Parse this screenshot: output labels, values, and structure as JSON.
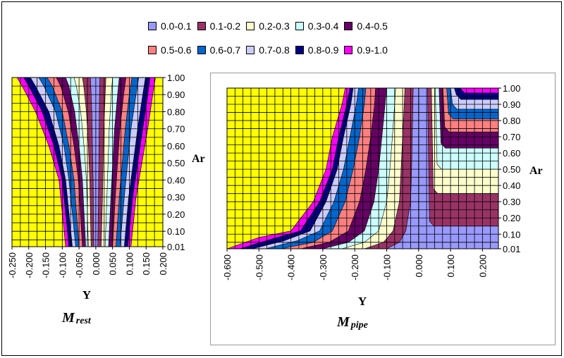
{
  "legend": {
    "items": [
      {
        "label": "0.0-0.1",
        "color": "#9999ff"
      },
      {
        "label": "0.1-0.2",
        "color": "#993366"
      },
      {
        "label": "0.2-0.3",
        "color": "#ffffcc"
      },
      {
        "label": "0.3-0.4",
        "color": "#ccffff"
      },
      {
        "label": "0.4-0.5",
        "color": "#660066"
      },
      {
        "label": "0.5-0.6",
        "color": "#ff8080"
      },
      {
        "label": "0.6-0.7",
        "color": "#0066cc"
      },
      {
        "label": "0.7-0.8",
        "color": "#ccccff"
      },
      {
        "label": "0.8-0.9",
        "color": "#000080"
      },
      {
        "label": "0.9-1.0",
        "color": "#ff00ff"
      }
    ]
  },
  "colors": {
    "background": "#ffff00",
    "grid": "#000000"
  },
  "chart_data": [
    {
      "type": "area",
      "id": "left",
      "title_main": "M",
      "title_sub": "rest",
      "xlabel": "Y",
      "ylabel": "Ar",
      "xlim": [
        -0.25,
        0.2
      ],
      "ylim": [
        0.01,
        1.0
      ],
      "x_ticks": [
        "-0.250",
        "-0.200",
        "-0.150",
        "-0.100",
        "-0.050",
        "0.000",
        "0.050",
        "0.100",
        "0.150",
        "0.200"
      ],
      "y_ticks": [
        "0.01",
        "0.10",
        "0.20",
        "0.30",
        "0.40",
        "0.50",
        "0.60",
        "0.70",
        "0.80",
        "0.90",
        "1.00"
      ],
      "bands": [
        {
          "name": "0.9-1.0",
          "color": "#ff00ff",
          "left": [
            [
              -0.09,
              0.01
            ],
            [
              -0.11,
              0.4
            ],
            [
              -0.14,
              0.6
            ],
            [
              -0.18,
              0.8
            ],
            [
              -0.22,
              0.95
            ],
            [
              -0.235,
              1.0
            ]
          ],
          "right": [
            [
              0.178,
              1.0
            ],
            [
              0.17,
              0.9
            ],
            [
              0.155,
              0.7
            ],
            [
              0.12,
              0.3
            ],
            [
              0.105,
              0.01
            ]
          ]
        },
        {
          "name": "0.8-0.9",
          "color": "#000080",
          "left": [
            [
              -0.08,
              0.01
            ],
            [
              -0.1,
              0.4
            ],
            [
              -0.125,
              0.6
            ],
            [
              -0.16,
              0.8
            ],
            [
              -0.2,
              0.95
            ],
            [
              -0.215,
              1.0
            ]
          ],
          "right": [
            [
              0.162,
              1.0
            ],
            [
              0.155,
              0.9
            ],
            [
              0.14,
              0.7
            ],
            [
              0.11,
              0.3
            ],
            [
              0.095,
              0.01
            ]
          ]
        },
        {
          "name": "0.7-0.8",
          "color": "#ccccff",
          "left": [
            [
              -0.07,
              0.01
            ],
            [
              -0.09,
              0.4
            ],
            [
              -0.11,
              0.6
            ],
            [
              -0.14,
              0.8
            ],
            [
              -0.18,
              0.95
            ],
            [
              -0.195,
              1.0
            ]
          ],
          "right": [
            [
              0.148,
              1.0
            ],
            [
              0.14,
              0.9
            ],
            [
              0.125,
              0.7
            ],
            [
              0.098,
              0.3
            ],
            [
              0.085,
              0.01
            ]
          ]
        },
        {
          "name": "0.6-0.7",
          "color": "#0066cc",
          "left": [
            [
              -0.06,
              0.01
            ],
            [
              -0.08,
              0.4
            ],
            [
              -0.095,
              0.6
            ],
            [
              -0.12,
              0.8
            ],
            [
              -0.155,
              0.95
            ],
            [
              -0.17,
              1.0
            ]
          ],
          "right": [
            [
              0.128,
              1.0
            ],
            [
              0.12,
              0.9
            ],
            [
              0.105,
              0.7
            ],
            [
              0.085,
              0.3
            ],
            [
              0.072,
              0.01
            ]
          ]
        },
        {
          "name": "0.5-0.6",
          "color": "#ff8080",
          "left": [
            [
              -0.05,
              0.01
            ],
            [
              -0.065,
              0.4
            ],
            [
              -0.08,
              0.6
            ],
            [
              -0.1,
              0.8
            ],
            [
              -0.13,
              0.95
            ],
            [
              -0.145,
              1.0
            ]
          ],
          "right": [
            [
              0.108,
              1.0
            ],
            [
              0.1,
              0.9
            ],
            [
              0.088,
              0.7
            ],
            [
              0.07,
              0.3
            ],
            [
              0.06,
              0.01
            ]
          ]
        },
        {
          "name": "0.4-0.5",
          "color": "#660066",
          "left": [
            [
              -0.04,
              0.01
            ],
            [
              -0.052,
              0.4
            ],
            [
              -0.065,
              0.6
            ],
            [
              -0.082,
              0.8
            ],
            [
              -0.105,
              0.95
            ],
            [
              -0.118,
              1.0
            ]
          ],
          "right": [
            [
              0.09,
              1.0
            ],
            [
              0.083,
              0.9
            ],
            [
              0.072,
              0.7
            ],
            [
              0.058,
              0.3
            ],
            [
              0.05,
              0.01
            ]
          ]
        },
        {
          "name": "0.3-0.4",
          "color": "#ccffff",
          "left": [
            [
              -0.03,
              0.01
            ],
            [
              -0.04,
              0.4
            ],
            [
              -0.05,
              0.6
            ],
            [
              -0.063,
              0.8
            ],
            [
              -0.08,
              0.95
            ],
            [
              -0.09,
              1.0
            ]
          ],
          "right": [
            [
              0.07,
              1.0
            ],
            [
              0.065,
              0.9
            ],
            [
              0.056,
              0.7
            ],
            [
              0.045,
              0.3
            ],
            [
              0.038,
              0.01
            ]
          ]
        },
        {
          "name": "0.2-0.3",
          "color": "#ffffcc",
          "left": [
            [
              -0.022,
              0.01
            ],
            [
              -0.028,
              0.4
            ],
            [
              -0.035,
              0.6
            ],
            [
              -0.045,
              0.8
            ],
            [
              -0.058,
              0.95
            ],
            [
              -0.065,
              1.0
            ]
          ],
          "right": [
            [
              0.05,
              1.0
            ],
            [
              0.046,
              0.9
            ],
            [
              0.04,
              0.7
            ],
            [
              0.033,
              0.3
            ],
            [
              0.028,
              0.01
            ]
          ]
        },
        {
          "name": "0.1-0.2",
          "color": "#993366",
          "left": [
            [
              -0.014,
              0.01
            ],
            [
              -0.018,
              0.4
            ],
            [
              -0.022,
              0.6
            ],
            [
              -0.028,
              0.8
            ],
            [
              -0.036,
              0.95
            ],
            [
              -0.04,
              1.0
            ]
          ],
          "right": [
            [
              0.03,
              1.0
            ],
            [
              0.028,
              0.9
            ],
            [
              0.024,
              0.7
            ],
            [
              0.02,
              0.3
            ],
            [
              0.016,
              0.01
            ]
          ]
        },
        {
          "name": "0.0-0.1",
          "color": "#9999ff",
          "left": [
            [
              -0.006,
              0.01
            ],
            [
              -0.008,
              0.4
            ],
            [
              -0.01,
              0.6
            ],
            [
              -0.012,
              0.8
            ],
            [
              -0.015,
              0.95
            ],
            [
              -0.016,
              1.0
            ]
          ],
          "right": [
            [
              0.012,
              1.0
            ],
            [
              0.011,
              0.9
            ],
            [
              0.01,
              0.7
            ],
            [
              0.008,
              0.3
            ],
            [
              0.006,
              0.01
            ]
          ]
        }
      ]
    },
    {
      "type": "area",
      "id": "right",
      "title_main": "M",
      "title_sub": "pipe",
      "xlabel": "Y",
      "ylabel": "Ar",
      "xlim": [
        -0.6,
        0.25
      ],
      "ylim": [
        0.01,
        1.0
      ],
      "x_ticks": [
        "-0.600",
        "-0.500",
        "-0.400",
        "-0.300",
        "-0.200",
        "-0.100",
        "0.000",
        "0.100",
        "0.200"
      ],
      "y_ticks": [
        "0.01",
        "0.10",
        "0.20",
        "0.30",
        "0.40",
        "0.50",
        "0.60",
        "0.70",
        "0.80",
        "0.90",
        "1.00"
      ],
      "left_bands": [
        {
          "name": "0.9-1.0",
          "color": "#ff00ff",
          "curve": [
            [
              -0.6,
              0.01
            ],
            [
              -0.5,
              0.08
            ],
            [
              -0.4,
              0.12
            ],
            [
              -0.33,
              0.3
            ],
            [
              -0.29,
              0.5
            ],
            [
              -0.27,
              0.7
            ],
            [
              -0.24,
              0.9
            ],
            [
              -0.23,
              1.0
            ]
          ]
        },
        {
          "name": "0.8-0.9",
          "color": "#000080",
          "curve": [
            [
              -0.56,
              0.01
            ],
            [
              -0.46,
              0.07
            ],
            [
              -0.37,
              0.12
            ],
            [
              -0.31,
              0.3
            ],
            [
              -0.27,
              0.5
            ],
            [
              -0.25,
              0.7
            ],
            [
              -0.225,
              0.9
            ],
            [
              -0.215,
              1.0
            ]
          ]
        },
        {
          "name": "0.7-0.8",
          "color": "#ccccff",
          "curve": [
            [
              -0.52,
              0.01
            ],
            [
              -0.42,
              0.06
            ],
            [
              -0.34,
              0.12
            ],
            [
              -0.29,
              0.3
            ],
            [
              -0.255,
              0.5
            ],
            [
              -0.235,
              0.7
            ],
            [
              -0.212,
              0.9
            ],
            [
              -0.205,
              1.0
            ]
          ]
        },
        {
          "name": "0.6-0.7",
          "color": "#0066cc",
          "curve": [
            [
              -0.48,
              0.01
            ],
            [
              -0.38,
              0.06
            ],
            [
              -0.31,
              0.12
            ],
            [
              -0.265,
              0.3
            ],
            [
              -0.235,
              0.5
            ],
            [
              -0.215,
              0.7
            ],
            [
              -0.195,
              0.9
            ],
            [
              -0.188,
              1.0
            ]
          ]
        },
        {
          "name": "0.5-0.6",
          "color": "#ff8080",
          "curve": [
            [
              -0.43,
              0.01
            ],
            [
              -0.33,
              0.05
            ],
            [
              -0.27,
              0.12
            ],
            [
              -0.23,
              0.3
            ],
            [
              -0.205,
              0.5
            ],
            [
              -0.185,
              0.7
            ],
            [
              -0.17,
              0.9
            ],
            [
              -0.165,
              1.0
            ]
          ]
        },
        {
          "name": "0.4-0.5",
          "color": "#660066",
          "curve": [
            [
              -0.37,
              0.01
            ],
            [
              -0.28,
              0.05
            ],
            [
              -0.22,
              0.12
            ],
            [
              -0.185,
              0.3
            ],
            [
              -0.165,
              0.5
            ],
            [
              -0.15,
              0.7
            ],
            [
              -0.138,
              0.9
            ],
            [
              -0.135,
              1.0
            ]
          ]
        },
        {
          "name": "0.3-0.4",
          "color": "#ccffff",
          "curve": [
            [
              -0.3,
              0.01
            ],
            [
              -0.22,
              0.05
            ],
            [
              -0.17,
              0.12
            ],
            [
              -0.14,
              0.3
            ],
            [
              -0.125,
              0.5
            ],
            [
              -0.115,
              0.7
            ],
            [
              -0.105,
              0.9
            ],
            [
              -0.1,
              1.0
            ]
          ]
        },
        {
          "name": "0.2-0.3",
          "color": "#ffffcc",
          "curve": [
            [
              -0.24,
              0.01
            ],
            [
              -0.17,
              0.05
            ],
            [
              -0.125,
              0.12
            ],
            [
              -0.1,
              0.3
            ],
            [
              -0.09,
              0.5
            ],
            [
              -0.082,
              0.7
            ],
            [
              -0.075,
              0.9
            ],
            [
              -0.072,
              1.0
            ]
          ]
        },
        {
          "name": "0.1-0.2",
          "color": "#993366",
          "curve": [
            [
              -0.17,
              0.01
            ],
            [
              -0.11,
              0.05
            ],
            [
              -0.08,
              0.12
            ],
            [
              -0.06,
              0.3
            ],
            [
              -0.055,
              0.5
            ],
            [
              -0.05,
              0.7
            ],
            [
              -0.045,
              0.9
            ],
            [
              -0.043,
              1.0
            ]
          ]
        },
        {
          "name": "0.0-0.1",
          "color": "#9999ff",
          "curve": [
            [
              -0.1,
              0.01
            ],
            [
              -0.06,
              0.05
            ],
            [
              -0.04,
              0.12
            ],
            [
              -0.025,
              0.3
            ],
            [
              -0.022,
              0.5
            ],
            [
              -0.02,
              0.7
            ],
            [
              -0.018,
              0.9
            ],
            [
              -0.017,
              1.0
            ]
          ]
        }
      ],
      "right_bands": [
        {
          "name": "0.1-0.2",
          "color": "#993366",
          "xstart": 0.028,
          "ylevel": 0.15
        },
        {
          "name": "0.2-0.3",
          "color": "#ffffcc",
          "xstart": 0.04,
          "ylevel": 0.35
        },
        {
          "name": "0.3-0.4",
          "color": "#ccffff",
          "xstart": 0.052,
          "ylevel": 0.5
        },
        {
          "name": "0.4-0.5",
          "color": "#660066",
          "xstart": 0.064,
          "ylevel": 0.63
        },
        {
          "name": "0.5-0.6",
          "color": "#ff8080",
          "xstart": 0.076,
          "ylevel": 0.73
        },
        {
          "name": "0.6-0.7",
          "color": "#0066cc",
          "xstart": 0.088,
          "ylevel": 0.81
        },
        {
          "name": "0.7-0.8",
          "color": "#ccccff",
          "xstart": 0.1,
          "ylevel": 0.87
        },
        {
          "name": "0.8-0.9",
          "color": "#000080",
          "xstart": 0.112,
          "ylevel": 0.93
        },
        {
          "name": "0.9-1.0",
          "color": "#ff00ff",
          "xstart": 0.124,
          "ylevel": 0.97
        }
      ]
    }
  ]
}
